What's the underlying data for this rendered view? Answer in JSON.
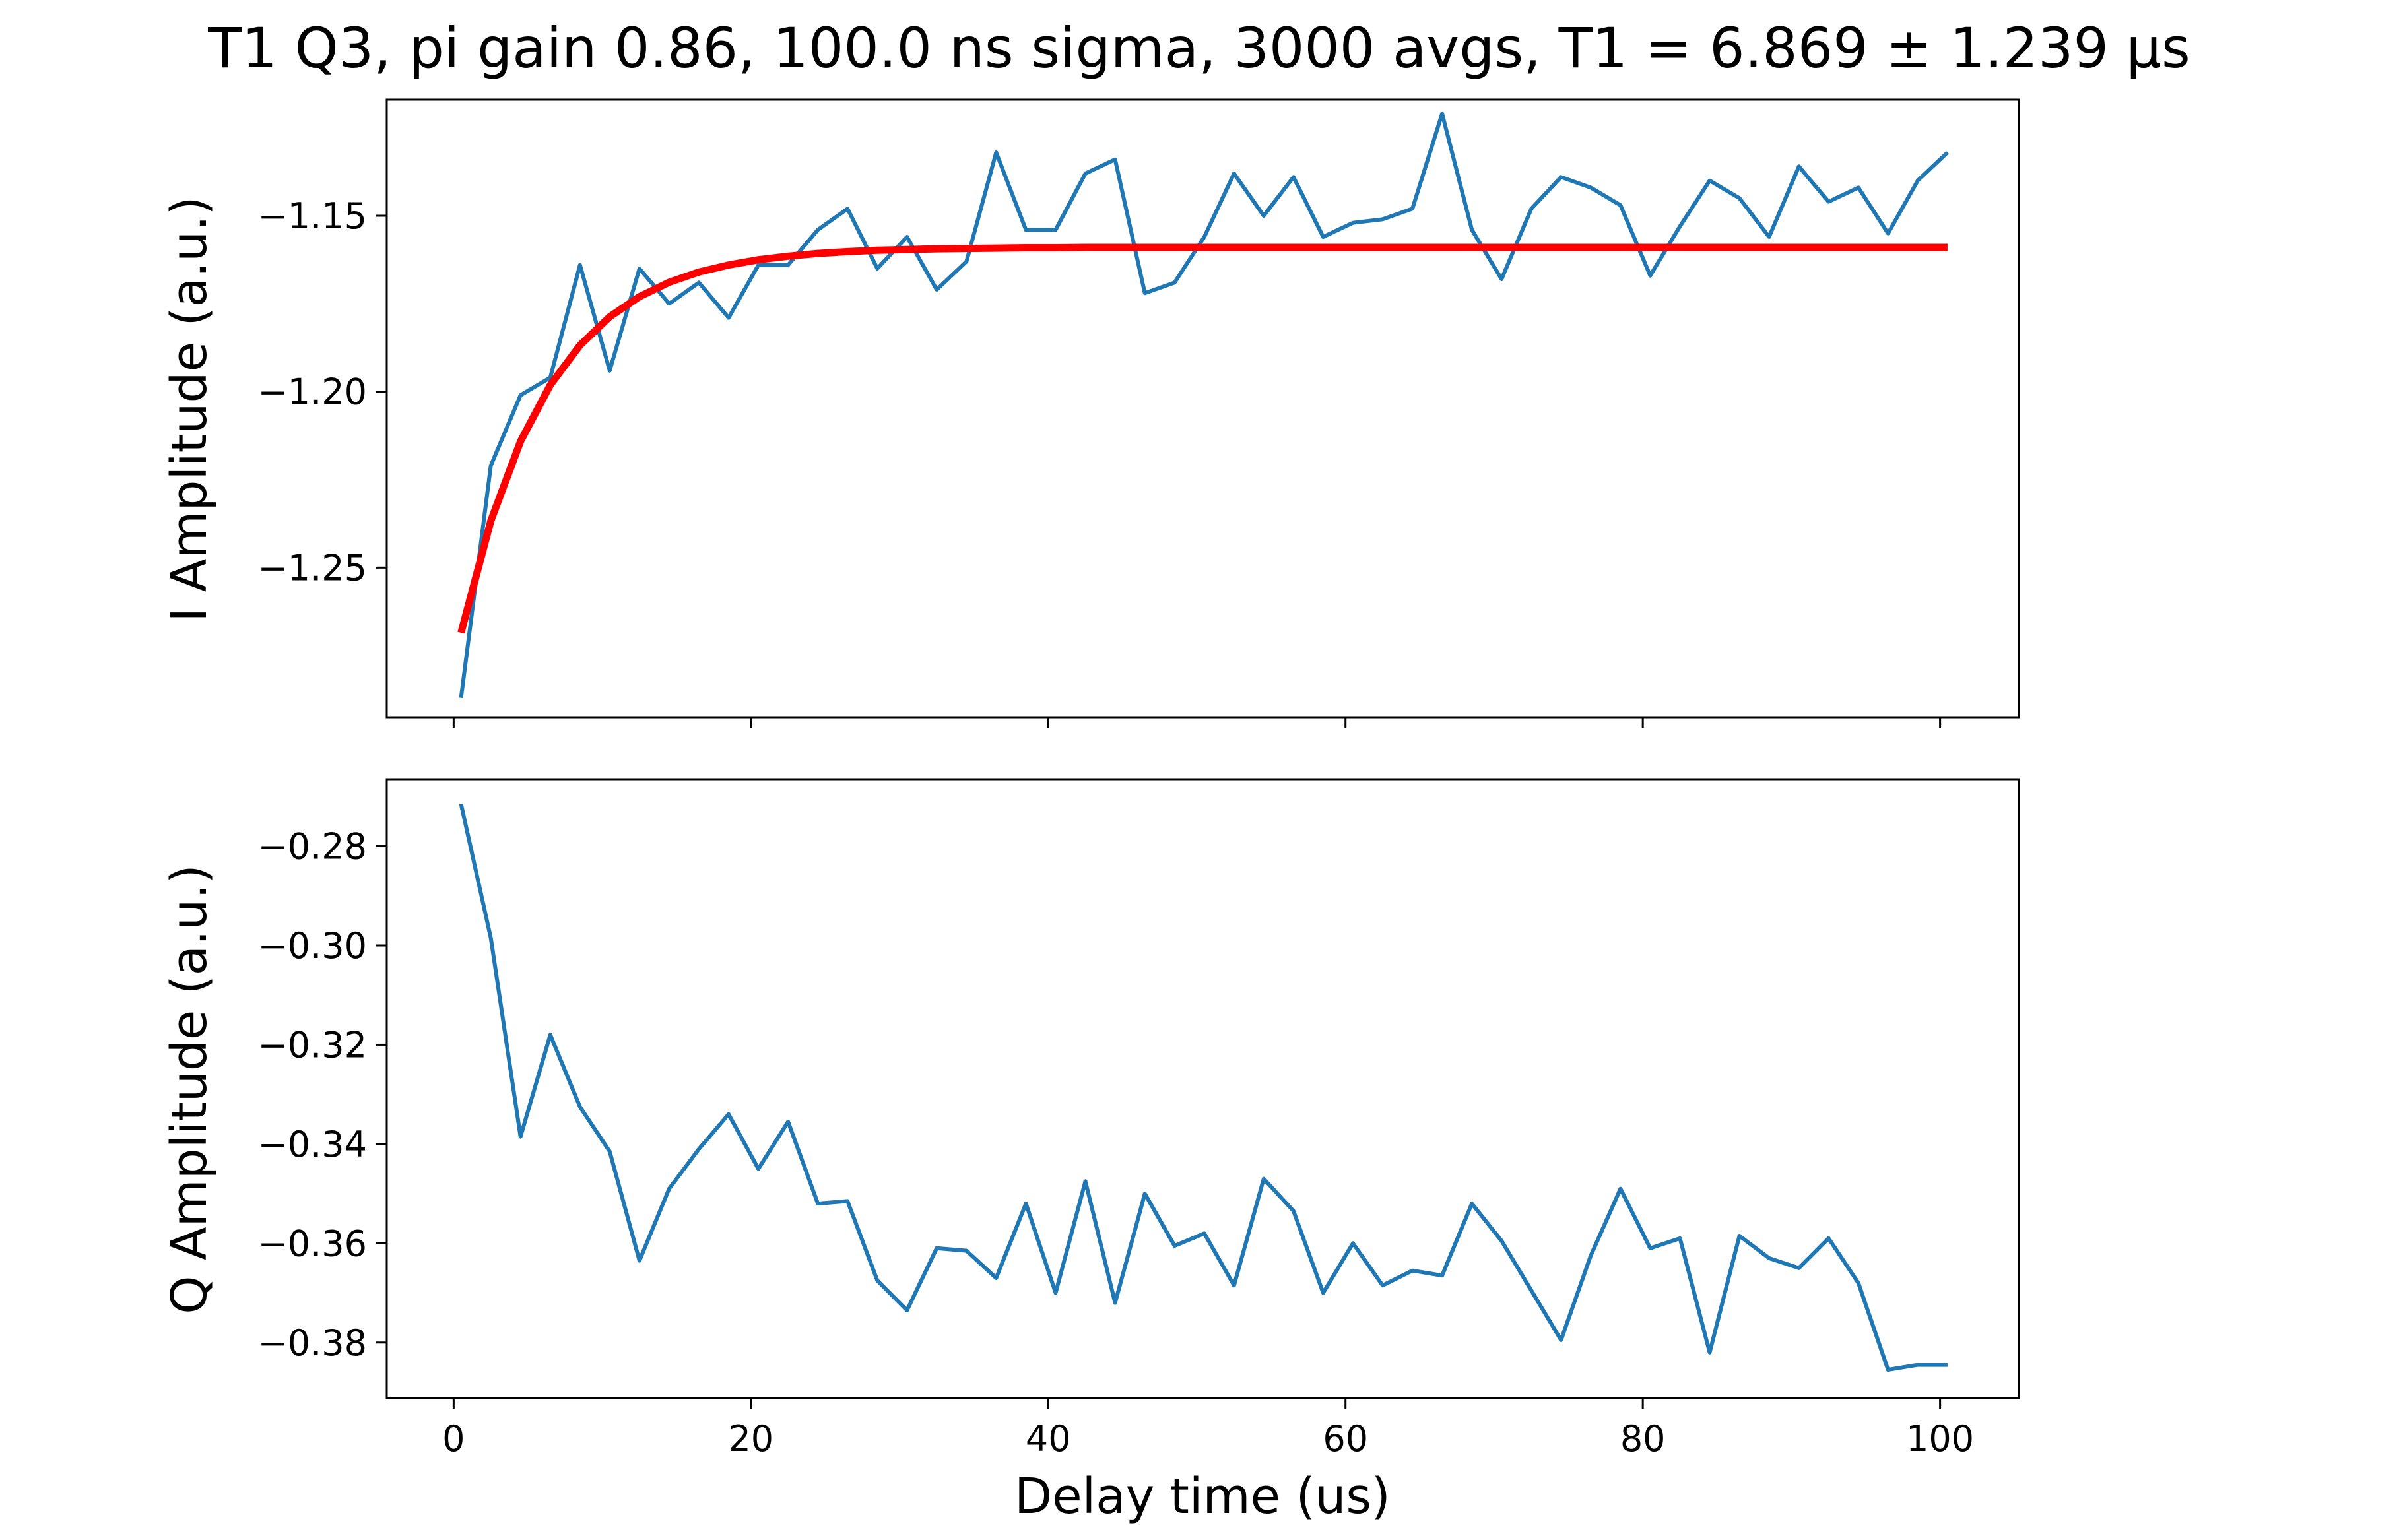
{
  "title": "T1 Q3, pi gain 0.86, 100.0 ns sigma, 3000 avgs, T1 = 6.869 ± 1.239 µs",
  "colors": {
    "data_line": "#1f77b4",
    "fit_line": "#ff0000",
    "axes": "#000000",
    "background": "#ffffff"
  },
  "chart_data": [
    {
      "type": "line",
      "panel": "top",
      "ylabel": "I Amplitude (a.u.)",
      "xlabel": "",
      "xlim": [
        -4.5,
        105.3
      ],
      "ylim": [
        -1.2925,
        -1.117
      ],
      "xticks": [
        0,
        20,
        40,
        60,
        80,
        100
      ],
      "xtick_labels_visible": false,
      "yticks": [
        -1.25,
        -1.2,
        -1.15
      ],
      "ytick_labels": [
        "−1.25",
        "−1.20",
        "−1.15"
      ],
      "grid": false,
      "legend": "none",
      "x": [
        0.5,
        2.5,
        4.5,
        6.5,
        8.5,
        10.5,
        12.5,
        14.5,
        16.5,
        18.5,
        20.5,
        22.5,
        24.5,
        26.5,
        28.5,
        30.5,
        32.5,
        34.5,
        36.5,
        38.5,
        40.5,
        42.5,
        44.5,
        46.5,
        48.5,
        50.5,
        52.5,
        54.5,
        56.5,
        58.5,
        60.5,
        62.5,
        64.5,
        66.5,
        68.5,
        70.5,
        72.5,
        74.5,
        76.5,
        78.5,
        80.5,
        82.5,
        84.5,
        86.5,
        88.5,
        90.5,
        92.5,
        94.5,
        96.5,
        98.5,
        100.5
      ],
      "series": [
        {
          "values": [
            -1.287,
            -1.221,
            -1.201,
            -1.196,
            -1.164,
            -1.194,
            -1.165,
            -1.175,
            -1.169,
            -1.179,
            -1.164,
            -1.164,
            -1.154,
            -1.148,
            -1.165,
            -1.156,
            -1.171,
            -1.163,
            -1.132,
            -1.154,
            -1.154,
            -1.138,
            -1.134,
            -1.172,
            -1.169,
            -1.156,
            -1.138,
            -1.15,
            -1.139,
            -1.156,
            -1.152,
            -1.151,
            -1.148,
            -1.121,
            -1.154,
            -1.168,
            -1.148,
            -1.139,
            -1.142,
            -1.147,
            -1.167,
            -1.153,
            -1.14,
            -1.145,
            -1.156,
            -1.136,
            -1.146,
            -1.142,
            -1.155,
            -1.14,
            -1.132
          ]
        },
        {
          "values": [
            -1.2685,
            -1.2367,
            -1.2141,
            -1.1981,
            -1.1868,
            -1.1787,
            -1.173,
            -1.1689,
            -1.166,
            -1.164,
            -1.1625,
            -1.1615,
            -1.1607,
            -1.1602,
            -1.1598,
            -1.1596,
            -1.1594,
            -1.1593,
            -1.1592,
            -1.1591,
            -1.1591,
            -1.159,
            -1.159,
            -1.159,
            -1.159,
            -1.159,
            -1.159,
            -1.159,
            -1.159,
            -1.159,
            -1.159,
            -1.159,
            -1.159,
            -1.159,
            -1.159,
            -1.159,
            -1.159,
            -1.159,
            -1.159,
            -1.159,
            -1.159,
            -1.159,
            -1.159,
            -1.159,
            -1.159,
            -1.159,
            -1.159,
            -1.159,
            -1.159,
            -1.159,
            -1.159
          ]
        }
      ]
    },
    {
      "type": "line",
      "panel": "bottom",
      "ylabel": "Q Amplitude (a.u.)",
      "xlabel": "Delay time (us)",
      "xlim": [
        -4.5,
        105.3
      ],
      "ylim": [
        -0.3912,
        -0.2665
      ],
      "xticks": [
        0,
        20,
        40,
        60,
        80,
        100
      ],
      "xtick_labels": [
        "0",
        "20",
        "40",
        "60",
        "80",
        "100"
      ],
      "yticks": [
        -0.38,
        -0.36,
        -0.34,
        -0.32,
        -0.3,
        -0.28
      ],
      "ytick_labels": [
        "−0.38",
        "−0.36",
        "−0.34",
        "−0.32",
        "−0.30",
        "−0.28"
      ],
      "grid": false,
      "legend": "none",
      "x": [
        0.5,
        2.5,
        4.5,
        6.5,
        8.5,
        10.5,
        12.5,
        14.5,
        16.5,
        18.5,
        20.5,
        22.5,
        24.5,
        26.5,
        28.5,
        30.5,
        32.5,
        34.5,
        36.5,
        38.5,
        40.5,
        42.5,
        44.5,
        46.5,
        48.5,
        50.5,
        52.5,
        54.5,
        56.5,
        58.5,
        60.5,
        62.5,
        64.5,
        66.5,
        68.5,
        70.5,
        72.5,
        74.5,
        76.5,
        78.5,
        80.5,
        82.5,
        84.5,
        86.5,
        88.5,
        90.5,
        92.5,
        94.5,
        96.5,
        98.5,
        100.5
      ],
      "series": [
        {
          "values": [
            -0.2715,
            -0.2985,
            -0.3385,
            -0.318,
            -0.3325,
            -0.3415,
            -0.3635,
            -0.349,
            -0.341,
            -0.334,
            -0.345,
            -0.3355,
            -0.352,
            -0.3515,
            -0.3675,
            -0.3735,
            -0.361,
            -0.3615,
            -0.367,
            -0.352,
            -0.37,
            -0.3475,
            -0.372,
            -0.35,
            -0.3605,
            -0.358,
            -0.3685,
            -0.347,
            -0.3535,
            -0.37,
            -0.36,
            -0.3685,
            -0.3655,
            -0.3665,
            -0.352,
            -0.3595,
            -0.3695,
            -0.3795,
            -0.3625,
            -0.349,
            -0.361,
            -0.359,
            -0.382,
            -0.3585,
            -0.363,
            -0.365,
            -0.359,
            -0.368,
            -0.3855,
            -0.3845,
            -0.3845
          ]
        }
      ]
    }
  ]
}
